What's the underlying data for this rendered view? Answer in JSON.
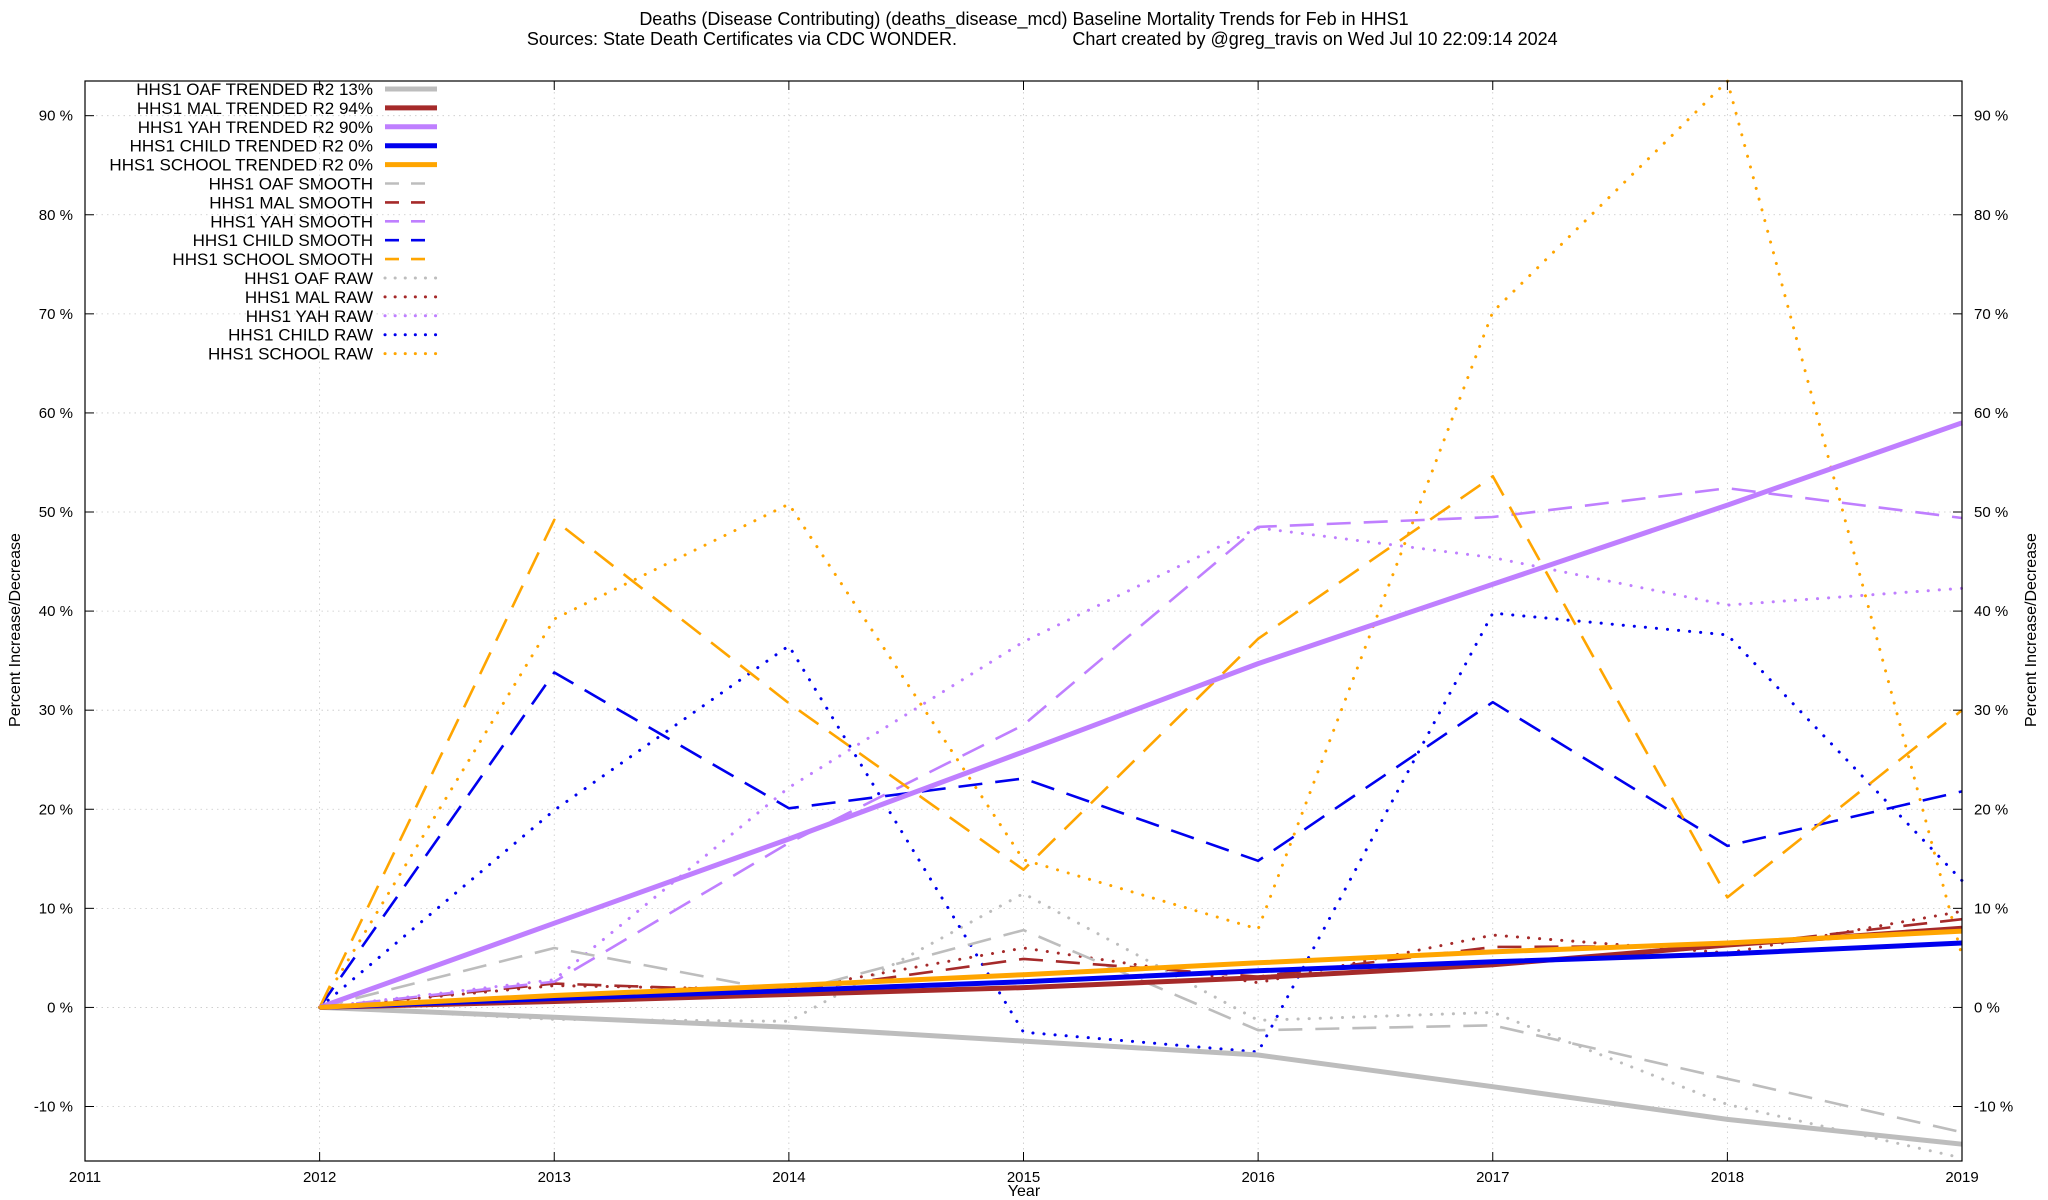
{
  "chart_data": {
    "type": "line",
    "title_line1": "Deaths (Disease Contributing) (deaths_disease_mcd)  Baseline Mortality Trends for Feb in HHS1",
    "title_line2_left": "Sources: State Death Certificates via CDC WONDER.",
    "title_line2_right": "Chart created by @greg_travis on Wed Jul 10 22:09:14 2024",
    "xlabel": "Year",
    "ylabel": "Percent Increase/Decrease",
    "ylabel_right": "Percent Increase/Decrease",
    "xlim": [
      2011,
      2019
    ],
    "ylim": [
      -15.5,
      93.5
    ],
    "x_ticks": [
      2011,
      2012,
      2013,
      2014,
      2015,
      2016,
      2017,
      2018,
      2019
    ],
    "y_ticks": [
      -10,
      0,
      10,
      20,
      30,
      40,
      50,
      60,
      70,
      80,
      90
    ],
    "y_tick_labels": [
      "-10 %",
      "0 %",
      "10 %",
      "20 %",
      "30 %",
      "40 %",
      "50 %",
      "60 %",
      "70 %",
      "80 %",
      "90 %"
    ],
    "grid": true,
    "legend_position": "top-left",
    "x": [
      2012,
      2013,
      2014,
      2015,
      2016,
      2017,
      2018,
      2019
    ],
    "series": [
      {
        "name": "HHS1 OAF TRENDED R2  13%",
        "style": "solid",
        "color": "#bdbdbd",
        "values": [
          0,
          -1.0,
          -2.0,
          -3.4,
          -4.8,
          -8.0,
          -11.3,
          -13.8
        ]
      },
      {
        "name": "HHS1 MAL TRENDED R2  94%",
        "style": "solid",
        "color": "#a52a2a",
        "values": [
          0,
          0.6,
          1.3,
          2.0,
          3.0,
          4.3,
          6.3,
          8.0
        ]
      },
      {
        "name": "HHS1 YAH TRENDED R2  90%",
        "style": "solid",
        "color": "#bf7fff",
        "values": [
          0,
          8.5,
          17.0,
          25.8,
          34.7,
          42.7,
          50.7,
          59.0
        ]
      },
      {
        "name": "HHS1 CHILD TRENDED R2   0%",
        "style": "solid",
        "color": "#0000ee",
        "values": [
          0,
          0.9,
          1.7,
          2.6,
          3.7,
          4.6,
          5.4,
          6.5
        ]
      },
      {
        "name": "HHS1 SCHOOL TRENDED R2   0%",
        "style": "solid",
        "color": "#ffa500",
        "values": [
          0,
          1.2,
          2.2,
          3.3,
          4.5,
          5.6,
          6.5,
          7.7
        ]
      },
      {
        "name": "HHS1 OAF SMOOTH",
        "style": "dashed",
        "color": "#bdbdbd",
        "values": [
          0,
          6.0,
          1.5,
          7.8,
          -2.3,
          -1.8,
          -7.2,
          -12.6
        ]
      },
      {
        "name": "HHS1 MAL SMOOTH",
        "style": "dashed",
        "color": "#a52a2a",
        "values": [
          0,
          2.4,
          1.6,
          4.9,
          3.1,
          6.1,
          6.2,
          8.9
        ]
      },
      {
        "name": "HHS1 YAH SMOOTH",
        "style": "dashed",
        "color": "#bf7fff",
        "values": [
          0,
          2.6,
          16.6,
          28.5,
          48.5,
          49.5,
          52.4,
          49.4
        ]
      },
      {
        "name": "HHS1 CHILD SMOOTH",
        "style": "dashed",
        "color": "#0000ee",
        "values": [
          0,
          33.8,
          20.1,
          23.1,
          14.8,
          30.8,
          16.3,
          21.8
        ]
      },
      {
        "name": "HHS1 SCHOOL SMOOTH",
        "style": "dashed",
        "color": "#ffa500",
        "values": [
          0,
          49.2,
          30.7,
          13.9,
          37.2,
          53.6,
          11.1,
          30.0
        ]
      },
      {
        "name": "HHS1 OAF RAW",
        "style": "dotted",
        "color": "#bdbdbd",
        "values": [
          0,
          -1.2,
          -1.4,
          11.5,
          -1.3,
          -0.5,
          -9.8,
          -15.2
        ]
      },
      {
        "name": "HHS1 MAL RAW",
        "style": "dotted",
        "color": "#a52a2a",
        "values": [
          0,
          2.2,
          1.8,
          6.0,
          2.5,
          7.3,
          5.5,
          9.7
        ]
      },
      {
        "name": "HHS1 YAH RAW",
        "style": "dotted",
        "color": "#bf7fff",
        "values": [
          0,
          2.8,
          22.2,
          36.9,
          48.4,
          45.4,
          40.6,
          42.3
        ]
      },
      {
        "name": "HHS1 CHILD RAW",
        "style": "dotted",
        "color": "#0000ee",
        "values": [
          0,
          19.9,
          36.5,
          -2.5,
          -4.5,
          39.8,
          37.6,
          12.8
        ]
      },
      {
        "name": "HHS1 SCHOOL RAW",
        "style": "dotted",
        "color": "#ffa500",
        "values": [
          0,
          39.2,
          50.8,
          14.9,
          7.9,
          70.2,
          93.5,
          5.2
        ]
      }
    ]
  }
}
